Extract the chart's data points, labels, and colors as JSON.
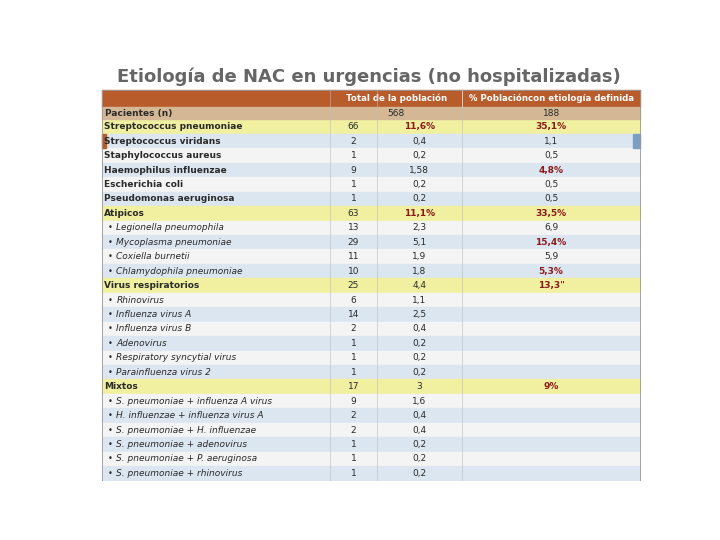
{
  "title": "Etiología de NAC en urgencias (no hospitalizadas)",
  "col_header": [
    "Total de la población",
    "% Poblacióncon etiología definida"
  ],
  "pacientes_label": "Pacientes (n)",
  "pacientes_values": [
    "568",
    "188"
  ],
  "rows": [
    {
      "label": "Streptococcus pneumoniae",
      "indent": false,
      "bold": true,
      "n": "66",
      "pct1": "11,6%",
      "pct2": "35,1%",
      "pct1_red": true,
      "pct2_red": true,
      "bg": "#f0f0a0"
    },
    {
      "label": "Streptococcus viridans",
      "indent": false,
      "bold": true,
      "n": "2",
      "pct1": "0,4",
      "pct2": "1,1",
      "pct1_red": false,
      "pct2_red": false,
      "bg": "#dce6f1"
    },
    {
      "label": "Staphylococcus aureus",
      "indent": false,
      "bold": true,
      "n": "1",
      "pct1": "0,2",
      "pct2": "0,5",
      "pct1_red": false,
      "pct2_red": false,
      "bg": "#f4f4f4"
    },
    {
      "label": "Haemophilus influenzae",
      "indent": false,
      "bold": true,
      "n": "9",
      "pct1": "1,58",
      "pct2": "4,8%",
      "pct1_red": false,
      "pct2_red": true,
      "bg": "#dce6f1"
    },
    {
      "label": "Escherichia coli",
      "indent": false,
      "bold": true,
      "n": "1",
      "pct1": "0,2",
      "pct2": "0,5",
      "pct1_red": false,
      "pct2_red": false,
      "bg": "#f4f4f4"
    },
    {
      "label": "Pseudomonas aeruginosa",
      "indent": false,
      "bold": true,
      "n": "1",
      "pct1": "0,2",
      "pct2": "0,5",
      "pct1_red": false,
      "pct2_red": false,
      "bg": "#dce6f1"
    },
    {
      "label": "Atipicos",
      "indent": false,
      "bold": true,
      "n": "63",
      "pct1": "11,1%",
      "pct2": "33,5%",
      "pct1_red": true,
      "pct2_red": true,
      "bg": "#f0f0a0"
    },
    {
      "label": "Legionella pneumophila",
      "indent": true,
      "bold": false,
      "n": "13",
      "pct1": "2,3",
      "pct2": "6,9",
      "pct1_red": false,
      "pct2_red": false,
      "bg": "#f4f4f4"
    },
    {
      "label": "Mycoplasma pneumoniae",
      "indent": true,
      "bold": false,
      "n": "29",
      "pct1": "5,1",
      "pct2": "15,4%",
      "pct1_red": false,
      "pct2_red": true,
      "bg": "#dce6f1"
    },
    {
      "label": "Coxiella burnetii",
      "indent": true,
      "bold": false,
      "n": "11",
      "pct1": "1,9",
      "pct2": "5,9",
      "pct1_red": false,
      "pct2_red": false,
      "bg": "#f4f4f4"
    },
    {
      "label": "Chlamydophila pneumoniae",
      "indent": true,
      "bold": false,
      "n": "10",
      "pct1": "1,8",
      "pct2": "5,3%",
      "pct1_red": false,
      "pct2_red": true,
      "bg": "#dce6f1"
    },
    {
      "label": "Virus respiratorios",
      "indent": false,
      "bold": true,
      "n": "25",
      "pct1": "4,4",
      "pct2": "13,3\"",
      "pct1_red": false,
      "pct2_red": true,
      "bg": "#f0f0a0"
    },
    {
      "label": "Rhinovirus",
      "indent": true,
      "bold": false,
      "n": "6",
      "pct1": "1,1",
      "pct2": "",
      "pct1_red": false,
      "pct2_red": false,
      "bg": "#f4f4f4"
    },
    {
      "label": "Influenza virus A",
      "indent": true,
      "bold": false,
      "n": "14",
      "pct1": "2,5",
      "pct2": "",
      "pct1_red": false,
      "pct2_red": false,
      "bg": "#dce6f1"
    },
    {
      "label": "Influenza virus B",
      "indent": true,
      "bold": false,
      "n": "2",
      "pct1": "0,4",
      "pct2": "",
      "pct1_red": false,
      "pct2_red": false,
      "bg": "#f4f4f4"
    },
    {
      "label": "Adenovirus",
      "indent": true,
      "bold": false,
      "n": "1",
      "pct1": "0,2",
      "pct2": "",
      "pct1_red": false,
      "pct2_red": false,
      "bg": "#dce6f1"
    },
    {
      "label": "Respiratory syncytial virus",
      "indent": true,
      "bold": false,
      "n": "1",
      "pct1": "0,2",
      "pct2": "",
      "pct1_red": false,
      "pct2_red": false,
      "bg": "#f4f4f4"
    },
    {
      "label": "Parainfluenza virus 2",
      "indent": true,
      "bold": false,
      "n": "1",
      "pct1": "0,2",
      "pct2": "",
      "pct1_red": false,
      "pct2_red": false,
      "bg": "#dce6f1"
    },
    {
      "label": "Mixtos",
      "indent": false,
      "bold": true,
      "n": "17",
      "pct1": "3",
      "pct2": "9%",
      "pct1_red": false,
      "pct2_red": true,
      "bg": "#f0f0a0"
    },
    {
      "label": "S. pneumoniae + influenza A virus",
      "indent": true,
      "bold": false,
      "n": "9",
      "pct1": "1,6",
      "pct2": "",
      "pct1_red": false,
      "pct2_red": false,
      "bg": "#f4f4f4"
    },
    {
      "label": "H. influenzae + influenza virus A",
      "indent": true,
      "bold": false,
      "n": "2",
      "pct1": "0,4",
      "pct2": "",
      "pct1_red": false,
      "pct2_red": false,
      "bg": "#dce6f1"
    },
    {
      "label": "S. pneumoniae + H. influenzae",
      "indent": true,
      "bold": false,
      "n": "2",
      "pct1": "0,4",
      "pct2": "",
      "pct1_red": false,
      "pct2_red": false,
      "bg": "#f4f4f4"
    },
    {
      "label": "S. pneumoniae + adenovirus",
      "indent": true,
      "bold": false,
      "n": "1",
      "pct1": "0,2",
      "pct2": "",
      "pct1_red": false,
      "pct2_red": false,
      "bg": "#dce6f1"
    },
    {
      "label": "S. pneumoniae + P. aeruginosa",
      "indent": true,
      "bold": false,
      "n": "1",
      "pct1": "0,2",
      "pct2": "",
      "pct1_red": false,
      "pct2_red": false,
      "bg": "#f4f4f4"
    },
    {
      "label": "S. pneumoniae + rhinovirus",
      "indent": true,
      "bold": false,
      "n": "1",
      "pct1": "0,2",
      "pct2": "",
      "pct1_red": false,
      "pct2_red": false,
      "bg": "#dce6f1"
    }
  ],
  "header_color": "#b85c2c",
  "subheader_color": "#d4b896",
  "brown_stripe_color": "#b85c2c",
  "blue_stripe_color": "#7a9fc2",
  "red_text_color": "#8b1a1a",
  "normal_text_color": "#2a2a2a"
}
